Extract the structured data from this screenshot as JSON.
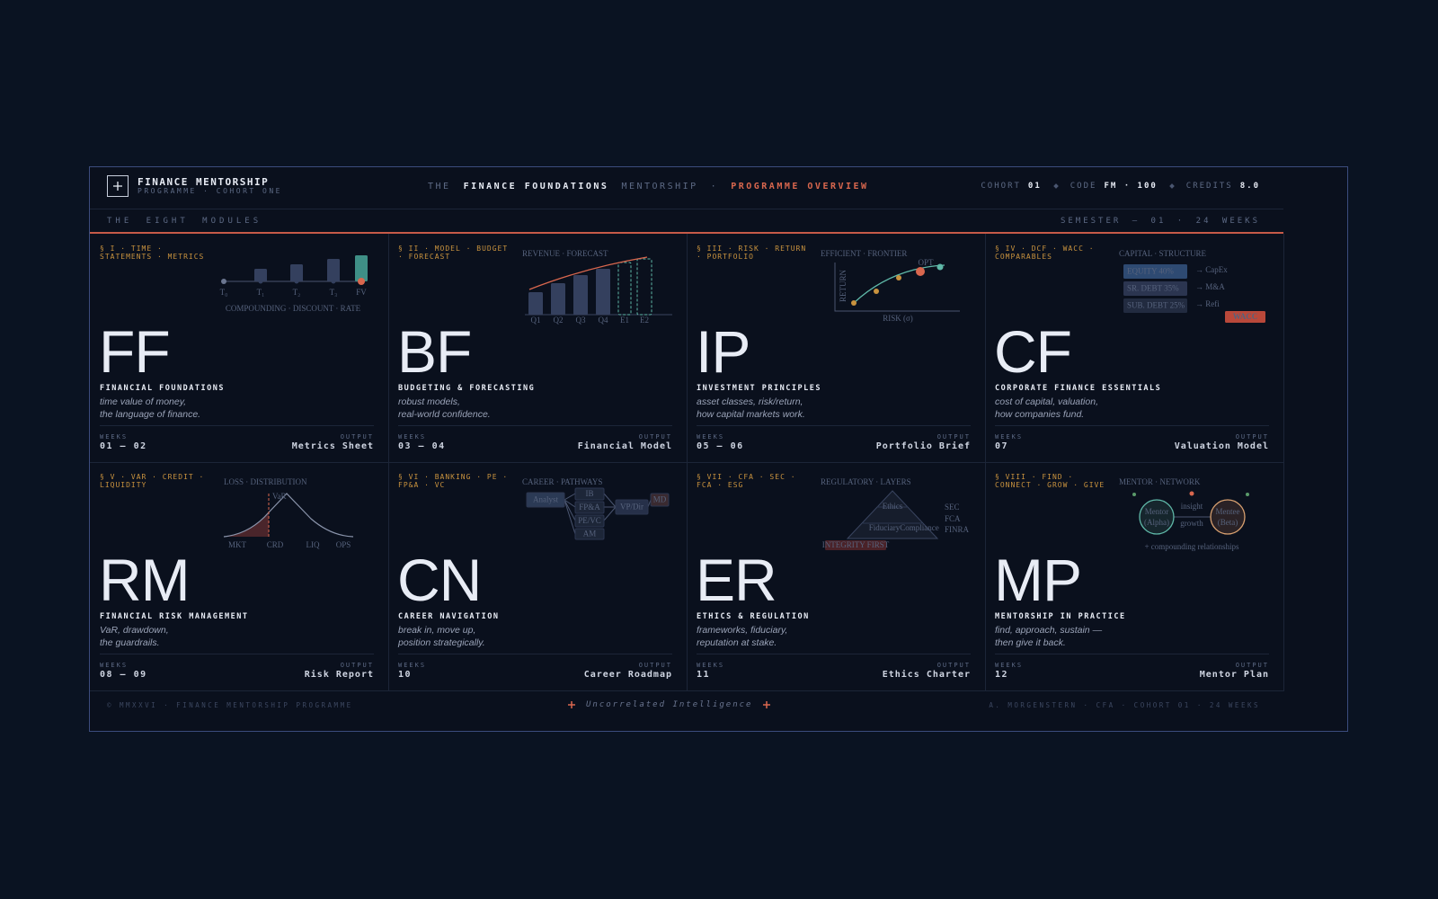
{
  "header": {
    "brand_title": "FINANCE MENTORSHIP",
    "brand_subtitle": "PROGRAMME · COHORT ONE",
    "tagline": [
      "THE",
      "FINANCE FOUNDATIONS",
      "MENTORSHIP",
      "·",
      "PROGRAMME OVERVIEW"
    ],
    "meta": [
      {
        "label": "COHORT",
        "value": "01"
      },
      {
        "label": "CODE",
        "value": "FM · 100"
      },
      {
        "label": "CREDITS",
        "value": "8.0"
      }
    ]
  },
  "subheader": {
    "left": "THE EIGHT MODULES",
    "right": "SEMESTER — 01 · 24 WEEKS"
  },
  "labels": {
    "weeks": "WEEKS",
    "output": "OUTPUT"
  },
  "modules": [
    {
      "section": "§ I · TIME · STATEMENTS · METRICS",
      "code": "FF",
      "name": "FINANCIAL FOUNDATIONS",
      "description": [
        "time value of money,",
        "the language of finance."
      ],
      "weeks": "01 — 02",
      "output": "Metrics Sheet",
      "sketch": {
        "labels": [
          "T₀",
          "T₁",
          "T₂",
          "T₃",
          "FV"
        ],
        "caption": "COMPOUNDING · DISCOUNT · RATE"
      }
    },
    {
      "section": "§ II · MODEL · BUDGET · FORECAST",
      "code": "BF",
      "name": "BUDGETING & FORECASTING",
      "description": [
        "robust models,",
        "real-world confidence."
      ],
      "weeks": "03 — 04",
      "output": "Financial Model",
      "sketch": {
        "title": "REVENUE · FORECAST",
        "labels": [
          "Q1",
          "Q2",
          "Q3",
          "Q4",
          "E1",
          "E2"
        ]
      }
    },
    {
      "section": "§ III · RISK · RETURN · PORTFOLIO",
      "code": "IP",
      "name": "INVESTMENT PRINCIPLES",
      "description": [
        "asset classes, risk/return,",
        "how capital markets work."
      ],
      "weeks": "05 — 06",
      "output": "Portfolio Brief",
      "sketch": {
        "title": "EFFICIENT · FRONTIER",
        "y_label": "RETURN",
        "x_label": "RISK (σ)",
        "point_label": "OPT"
      }
    },
    {
      "section": "§ IV · DCF · WACC · COMPARABLES",
      "code": "CF",
      "name": "CORPORATE FINANCE ESSENTIALS",
      "description": [
        "cost of capital, valuation,",
        "how companies fund."
      ],
      "weeks": "07",
      "output": "Valuation Model",
      "sketch": {
        "title": "CAPITAL · STRUCTURE",
        "tranches": [
          "EQUITY 40%",
          "SR. DEBT 35%",
          "SUB. DEBT 25%"
        ],
        "uses": [
          "→ CapEx",
          "→ M&A",
          "→ Refi"
        ],
        "badge": "WACC"
      }
    },
    {
      "section": "§ V · VAR · CREDIT · LIQUIDITY",
      "code": "RM",
      "name": "FINANCIAL RISK MANAGEMENT",
      "description": [
        "VaR, drawdown,",
        "the guardrails."
      ],
      "weeks": "08 — 09",
      "output": "Risk Report",
      "sketch": {
        "title": "LOSS · DISTRIBUTION",
        "marker": "VaR",
        "labels": [
          "MKT",
          "CRD",
          "LIQ",
          "OPS"
        ]
      }
    },
    {
      "section": "§ VI · BANKING · PE · FP&A · VC",
      "code": "CN",
      "name": "CAREER NAVIGATION",
      "description": [
        "break in, move up,",
        "position strategically."
      ],
      "weeks": "10",
      "output": "Career Roadmap",
      "sketch": {
        "title": "CAREER · PATHWAYS",
        "nodes": [
          "Analyst",
          "IB",
          "FP&A",
          "PE/VC",
          "AM",
          "VP/Dir",
          "MD"
        ]
      }
    },
    {
      "section": "§ VII · CFA · SEC · FCA · ESG",
      "code": "ER",
      "name": "ETHICS & REGULATION",
      "description": [
        "frameworks, fiduciary,",
        "reputation at stake."
      ],
      "weeks": "11",
      "output": "Ethics Charter",
      "sketch": {
        "title": "REGULATORY · LAYERS",
        "layers": [
          "Ethics",
          "Fiduciary",
          "Compliance"
        ],
        "regulators": [
          "SEC",
          "FCA",
          "FINRA"
        ],
        "badge": "INTEGRITY FIRST"
      }
    },
    {
      "section": "§ VIII · FIND · CONNECT · GROW · GIVE",
      "code": "MP",
      "name": "MENTORSHIP IN PRACTICE",
      "description": [
        "find, approach, sustain —",
        "then give it back."
      ],
      "weeks": "12",
      "output": "Mentor Plan",
      "sketch": {
        "title": "MENTOR · NETWORK",
        "mentor": [
          "Mentor",
          "(Alpha)"
        ],
        "mentee": [
          "Mentee",
          "(Beta)"
        ],
        "links": [
          "insight",
          "growth"
        ],
        "caption": "+ compounding relationships"
      }
    }
  ],
  "footer": {
    "left": "© MMXXVI · FINANCE MENTORSHIP PROGRAMME",
    "center": "Uncorrelated Intelligence",
    "right": "A. MORGENSTERN · CFA · COHORT 01 · 24 WEEKS"
  }
}
